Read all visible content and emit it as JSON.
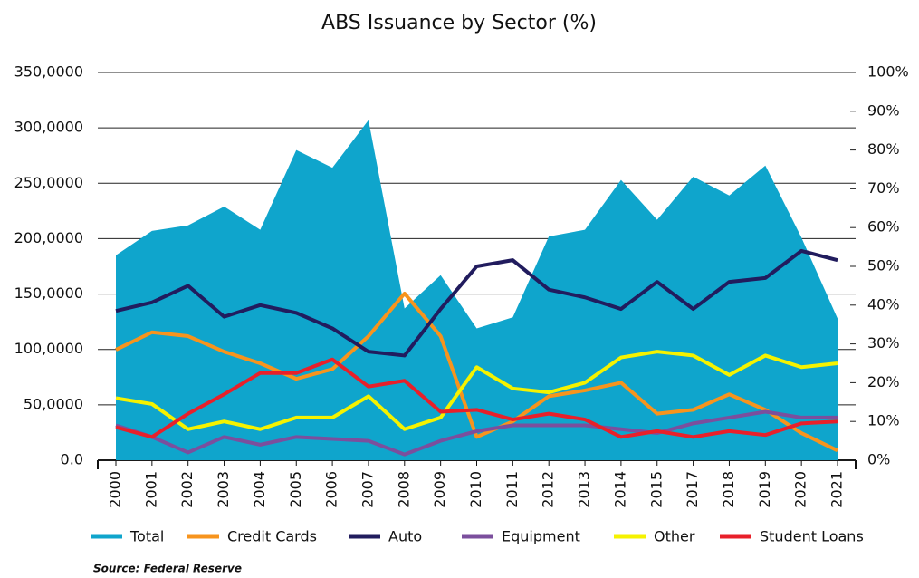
{
  "chart_data": {
    "type": "line",
    "title": "ABS Issuance by Sector (%)",
    "source": "Source: Federal Reserve",
    "categories": [
      "2000",
      "2001",
      "2002",
      "2003",
      "2004",
      "2005",
      "2006",
      "2007",
      "2008",
      "2009",
      "2010",
      "2011",
      "2012",
      "2013",
      "2014",
      "2015",
      "2017",
      "2018",
      "2019",
      "2020",
      "2021"
    ],
    "ylim": [
      0,
      350000
    ],
    "yticks": [
      {
        "value": 0,
        "label": "0.0"
      },
      {
        "value": 50000,
        "label": "50,0000"
      },
      {
        "value": 100000,
        "label": "100,0000"
      },
      {
        "value": 150000,
        "label": "150,0000"
      },
      {
        "value": 200000,
        "label": "200,0000"
      },
      {
        "value": 250000,
        "label": "250,0000"
      },
      {
        "value": 300000,
        "label": "300,0000"
      },
      {
        "value": 350000,
        "label": "350,0000"
      }
    ],
    "y2lim": [
      0,
      100
    ],
    "y2ticks": [
      {
        "value": 0,
        "label": "0%"
      },
      {
        "value": 10,
        "label": "10%"
      },
      {
        "value": 20,
        "label": "20%"
      },
      {
        "value": 30,
        "label": "30%"
      },
      {
        "value": 40,
        "label": "40%"
      },
      {
        "value": 50,
        "label": "50%"
      },
      {
        "value": 60,
        "label": "60%"
      },
      {
        "value": 70,
        "label": "70%"
      },
      {
        "value": 80,
        "label": "80%"
      },
      {
        "value": 90,
        "label": "90%"
      },
      {
        "value": 100,
        "label": "100%"
      }
    ],
    "grid": true,
    "legend": "bottom",
    "series": [
      {
        "name": "Total",
        "color": "#0fa5cc",
        "area": true,
        "values": [
          185000,
          207000,
          212000,
          229000,
          208000,
          280000,
          264000,
          307000,
          137000,
          167000,
          119000,
          129000,
          202000,
          208000,
          253000,
          217000,
          256000,
          239000,
          266000,
          201000,
          128000
        ]
      },
      {
        "name": "Credit Cards",
        "color": "#f7941d",
        "axis": "y2",
        "values": [
          28.5,
          33,
          32,
          28,
          25,
          21,
          23.5,
          32,
          43,
          32,
          6,
          10,
          16.5,
          18,
          20,
          12,
          13,
          17,
          13,
          7,
          2.5
        ]
      },
      {
        "name": "Auto",
        "color": "#211c5e",
        "axis": "y2",
        "values": [
          38.5,
          40.7,
          45,
          37,
          40,
          38,
          34,
          28,
          27,
          39,
          50,
          51.6,
          44,
          42,
          39,
          46,
          39,
          46,
          47,
          54,
          51.6
        ]
      },
      {
        "name": "Equipment",
        "color": "#7b4f9d",
        "axis": "y2",
        "values": [
          9,
          6,
          2,
          6,
          4,
          6,
          5.5,
          5,
          1.5,
          5,
          7.5,
          9,
          9,
          9,
          8,
          7,
          9.5,
          11,
          12.5,
          11,
          11
        ]
      },
      {
        "name": "Other",
        "color": "#f5f200",
        "axis": "y2",
        "values": [
          16,
          14.5,
          8,
          10,
          8,
          11,
          11,
          16.5,
          8,
          11,
          24,
          18.5,
          17.5,
          20,
          26.5,
          28,
          27,
          22,
          27,
          24,
          25
        ]
      },
      {
        "name": "Student Loans",
        "color": "#e8202a",
        "axis": "y2",
        "values": [
          8.5,
          6,
          12,
          17,
          22.5,
          22.5,
          26,
          19,
          20.5,
          12.5,
          13,
          10.5,
          12,
          10.5,
          6,
          7.5,
          6,
          7.5,
          6.5,
          9.5,
          10
        ]
      }
    ]
  }
}
